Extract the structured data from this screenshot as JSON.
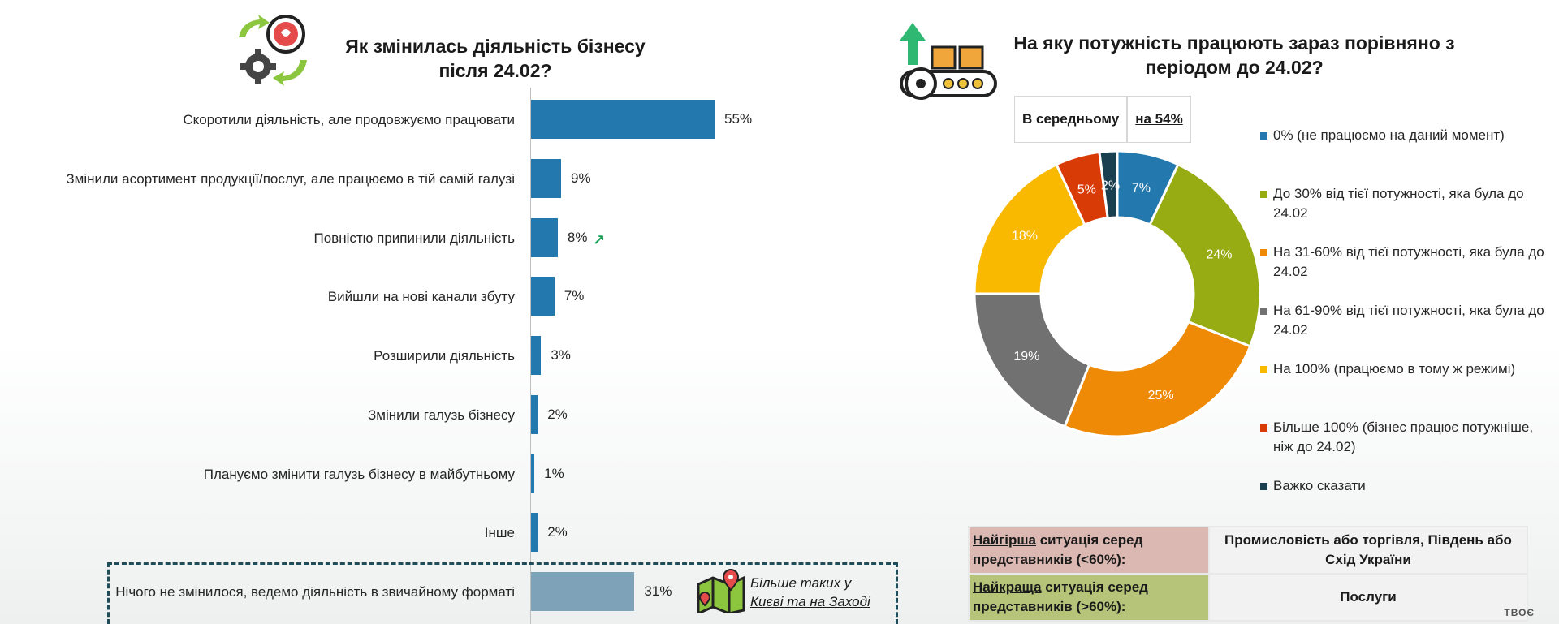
{
  "left": {
    "title_line1": "Як змінилась діяльність бізнесу",
    "title_line2": "після 24.02?"
  },
  "right": {
    "title_line1": "На яку потужність працюють зараз порівняно з",
    "title_line2": "періодом до 24.02?",
    "avg_label": "В середньому",
    "avg_value": "на 54%"
  },
  "more_note": {
    "line1": "Більше таких у",
    "line2": "Києві та на Заході"
  },
  "summary_table": {
    "worst_bold": "Найгірша",
    "worst_rest": " ситуація серед представників (<60%):",
    "worst_value": "Промисловість або торгівля, Південь або Схід України",
    "best_bold": "Найкраща",
    "best_rest": " ситуація серед представників (>60%):",
    "best_value": "Послуги"
  },
  "logo_text": "ТВОЄ",
  "chart_data": [
    {
      "type": "bar",
      "orientation": "horizontal",
      "categories": [
        "Скоротили діяльність, але продовжуємо працювати",
        "Змінили асортимент продукції/послуг, але працюємо в тій самій галузі",
        "Повністю припинили діяльність",
        "Вийшли на нові канали збуту",
        "Розширили діяльність",
        "Змінили галузь бізнесу",
        "Плануємо змінити галузь бізнесу в майбутньому",
        "Інше",
        "Нічого не змінилося, ведемо діяльність в звичайному форматі"
      ],
      "values": [
        55,
        9,
        8,
        7,
        3,
        2,
        1,
        2,
        31
      ],
      "value_labels": [
        "55%",
        "9%",
        "8%",
        "7%",
        "3%",
        "2%",
        "1%",
        "2%",
        "31%"
      ],
      "colors": [
        "#2378ad",
        "#2378ad",
        "#2378ad",
        "#2378ad",
        "#2378ad",
        "#2378ad",
        "#2378ad",
        "#2378ad",
        "#7ea2b7"
      ],
      "xlim": [
        0,
        100
      ],
      "title": "Як змінилась діяльність бізнесу після 24.02?",
      "grid": false
    },
    {
      "type": "pie",
      "style": "donut",
      "title": "На яку потужність працюють зараз порівняно з періодом до 24.02?",
      "labels": [
        "0% (не працюємо на даний момент)",
        "До 30% від тієї потужності, яка була до 24.02",
        "На 31-60% від тієї потужності, яка була до 24.02",
        "На 61-90% від тієї потужності, яка була до 24.02",
        "На 100% (працюємо в тому ж режимі)",
        "Більше 100% (бізнес працює потужніше, ніж до 24.02)",
        "Важко сказати"
      ],
      "values": [
        7,
        24,
        25,
        19,
        18,
        5,
        2
      ],
      "value_labels": [
        "7%",
        "24%",
        "25%",
        "19%",
        "18%",
        "5%",
        "2%"
      ],
      "colors": [
        "#2378ad",
        "#97ab13",
        "#ef8a06",
        "#717171",
        "#f9b900",
        "#d93b07",
        "#1a3f4f"
      ],
      "legend_position": "right"
    }
  ]
}
